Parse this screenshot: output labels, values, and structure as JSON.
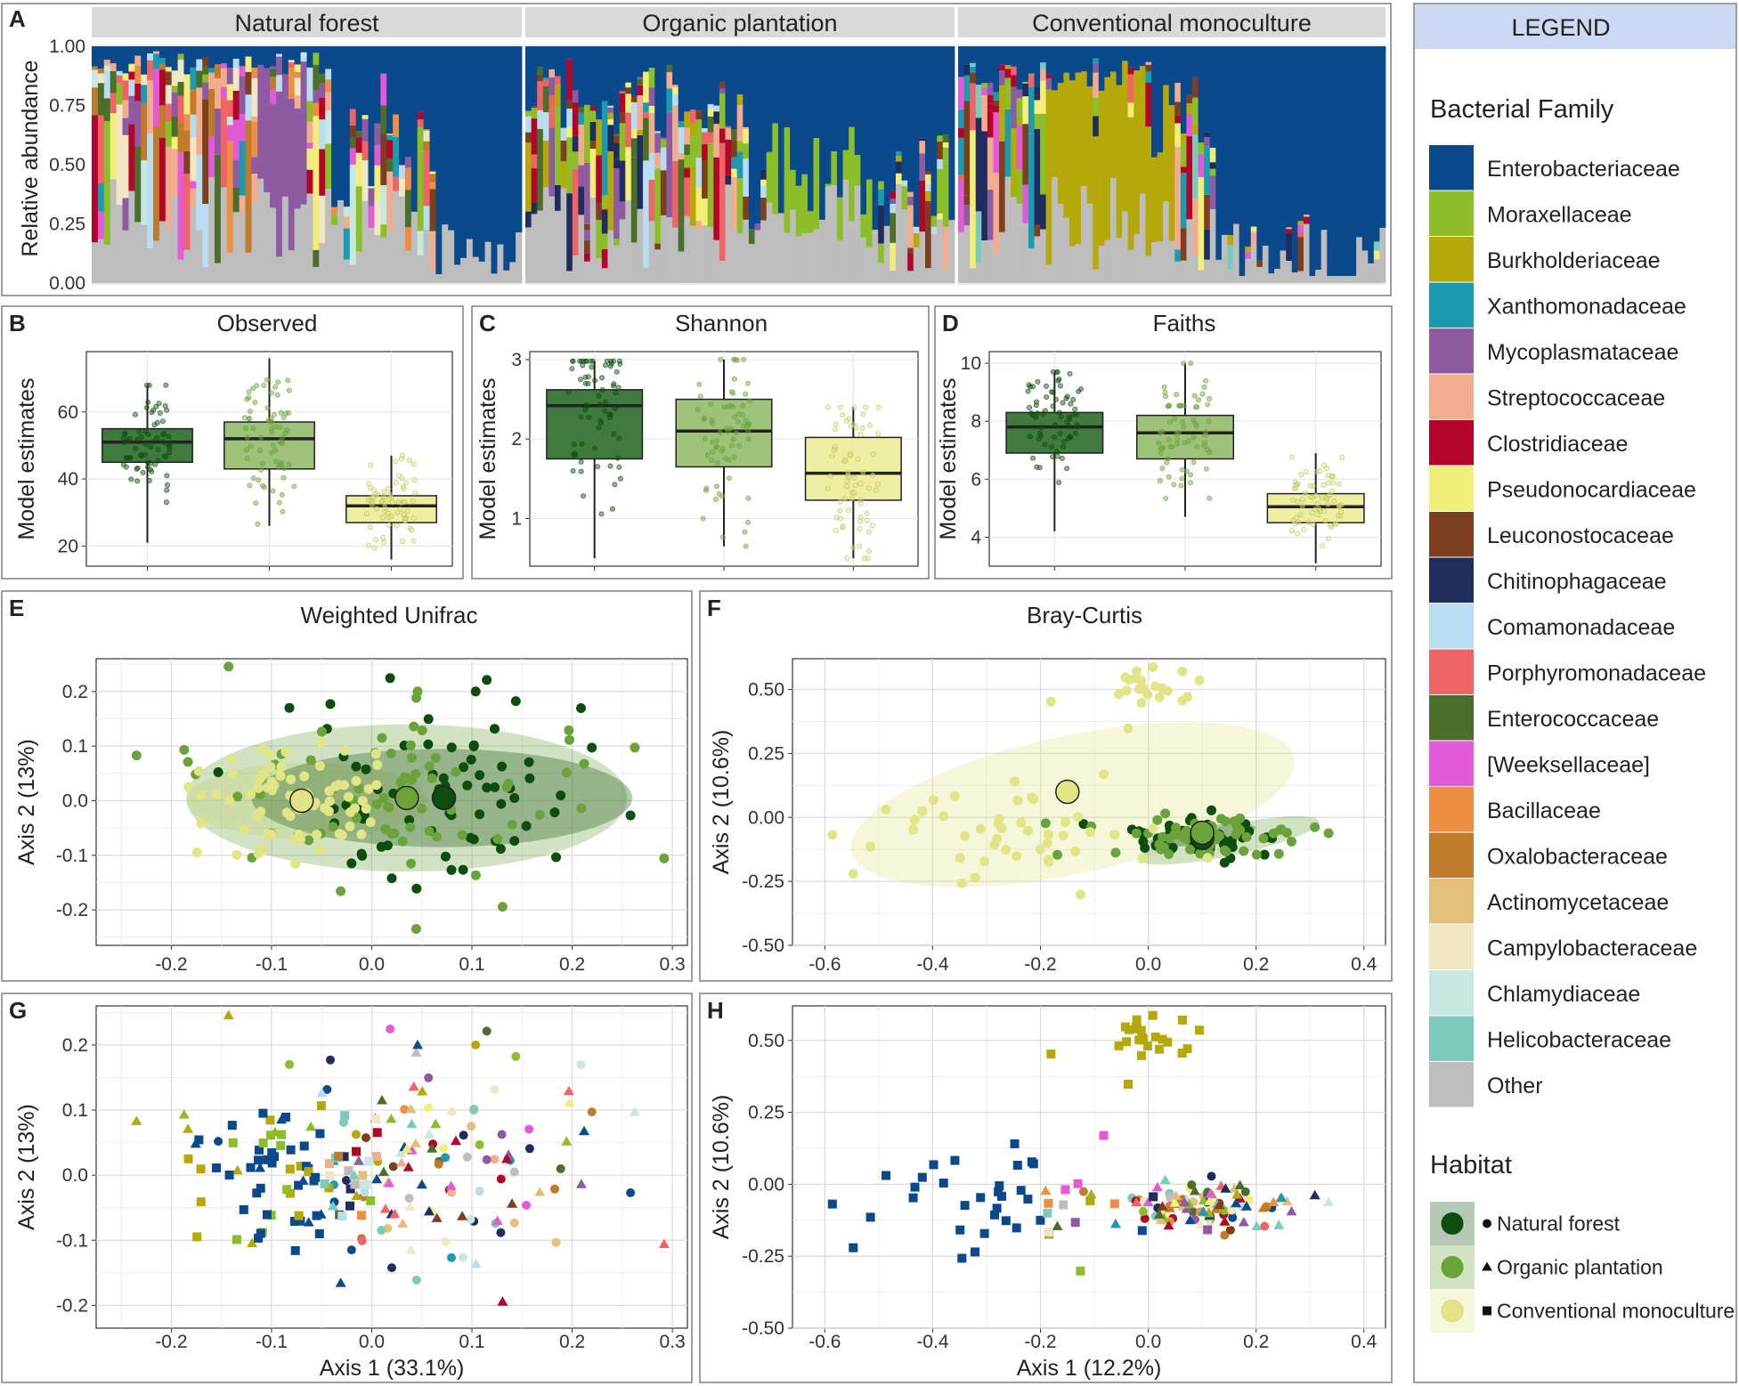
{
  "colors": {
    "natural": "#0d4d0d",
    "organic": "#6aa33a",
    "conventional": "#e2e585",
    "nat_box": "#3f7a3f",
    "org_box": "#9ec27a",
    "conv_box": "#eeeea0",
    "legend_header": "#cdd9f3",
    "panel_bg": "#ffffff",
    "strip_bg": "#d9d9d9"
  },
  "families": [
    {
      "name": "Enterobacteriaceae",
      "color": "#0a4a8c"
    },
    {
      "name": "Moraxellaceae",
      "color": "#8cbe2a"
    },
    {
      "name": "Burkholderiaceae",
      "color": "#b5a90a"
    },
    {
      "name": "Xanthomonadaceae",
      "color": "#1a9bb0"
    },
    {
      "name": "Mycoplasmataceae",
      "color": "#8e5ba2"
    },
    {
      "name": "Streptococcaceae",
      "color": "#f2ad8f"
    },
    {
      "name": "Clostridiaceae",
      "color": "#b3052a"
    },
    {
      "name": "Pseudonocardiaceae",
      "color": "#f2ee7a"
    },
    {
      "name": "Leuconostocaceae",
      "color": "#7e3f1e"
    },
    {
      "name": "Chitinophagaceae",
      "color": "#1f2d5e"
    },
    {
      "name": "Comamonadaceae",
      "color": "#b8dcf0"
    },
    {
      "name": "Porphyromonadaceae",
      "color": "#ef6467"
    },
    {
      "name": "Enterococcaceae",
      "color": "#4b6e2b"
    },
    {
      "name": "[Weeksellaceae]",
      "color": "#e35ad9"
    },
    {
      "name": "Bacillaceae",
      "color": "#ec8f42"
    },
    {
      "name": "Oxalobacteraceae",
      "color": "#bf7a2a"
    },
    {
      "name": "Actinomycetaceae",
      "color": "#e1c07c"
    },
    {
      "name": "Campylobacteraceae",
      "color": "#f1e7c5"
    },
    {
      "name": "Chlamydiaceae",
      "color": "#c7e8e1"
    },
    {
      "name": "Helicobacteraceae",
      "color": "#7bcbbc"
    },
    {
      "name": "Other",
      "color": "#bdbdbd"
    }
  ],
  "legend": {
    "title": "LEGEND",
    "family_title": "Bacterial Family",
    "habitat_title": "Habitat",
    "habitats": [
      {
        "label": "Natural forest",
        "shape": "circle"
      },
      {
        "label": "Organic plantation",
        "shape": "triangle"
      },
      {
        "label": "Conventional monoculture",
        "shape": "square"
      }
    ]
  },
  "chart_data": [
    {
      "panel": "A",
      "type": "bar",
      "stacked": true,
      "facets": [
        "Natural forest",
        "Organic plantation",
        "Conventional monoculture"
      ],
      "ylabel": "Relative abundance",
      "yticks": [
        "0.00",
        "0.25",
        "0.50",
        "0.75",
        "1.00"
      ],
      "ylim": [
        0,
        1
      ],
      "samples_per_facet": [
        70,
        73,
        73
      ],
      "dominant_family_by_region": {
        "Natural forest": "Other (grey) base with Enterobacteriaceae dominating the right third",
        "Organic plantation": "Moraxellaceae dominant block, Enterobacteriaceae top",
        "Conventional monoculture": "Burkholderiaceae central block, Enterobacteriaceae dominating the right half"
      }
    },
    {
      "panel": "B",
      "type": "box",
      "title": "Observed",
      "ylabel": "Model estimates",
      "ylim": [
        14,
        78
      ],
      "yticks": [
        20,
        40,
        60
      ],
      "groups": [
        {
          "habitat": "Natural forest",
          "min": 21,
          "q1": 45,
          "median": 51,
          "q3": 55,
          "max": 68
        },
        {
          "habitat": "Organic plantation",
          "min": 26,
          "q1": 43,
          "median": 52,
          "q3": 57,
          "max": 76
        },
        {
          "habitat": "Conventional monoculture",
          "min": 16,
          "q1": 27,
          "median": 32,
          "q3": 35,
          "max": 47
        }
      ]
    },
    {
      "panel": "C",
      "type": "box",
      "title": "Shannon",
      "ylabel": "Model estimates",
      "ylim": [
        0.4,
        3.1
      ],
      "yticks": [
        1,
        2,
        3
      ],
      "groups": [
        {
          "habitat": "Natural forest",
          "min": 0.5,
          "q1": 1.75,
          "median": 2.42,
          "q3": 2.62,
          "max": 2.98
        },
        {
          "habitat": "Organic plantation",
          "min": 0.65,
          "q1": 1.65,
          "median": 2.1,
          "q3": 2.5,
          "max": 3.0
        },
        {
          "habitat": "Conventional monoculture",
          "min": 0.5,
          "q1": 1.23,
          "median": 1.57,
          "q3": 2.02,
          "max": 2.4
        }
      ]
    },
    {
      "panel": "D",
      "type": "box",
      "title": "Faiths",
      "ylabel": "Model estimates",
      "ylim": [
        3,
        10.4
      ],
      "yticks": [
        4,
        6,
        8,
        10
      ],
      "groups": [
        {
          "habitat": "Natural forest",
          "min": 4.2,
          "q1": 6.9,
          "median": 7.8,
          "q3": 8.3,
          "max": 9.7
        },
        {
          "habitat": "Organic plantation",
          "min": 4.7,
          "q1": 6.7,
          "median": 7.6,
          "q3": 8.2,
          "max": 10.0
        },
        {
          "habitat": "Conventional monoculture",
          "min": 3.1,
          "q1": 4.5,
          "median": 5.05,
          "q3": 5.5,
          "max": 6.9
        }
      ]
    },
    {
      "panel": "E",
      "type": "scatter",
      "title": "Weighted Unifrac",
      "ylabel": "Axis 2 (13%)",
      "xlim": [
        -0.275,
        0.315
      ],
      "ylim": [
        -0.265,
        0.26
      ],
      "xticks": [
        "-0.2",
        "-0.1",
        "0.0",
        "0.1",
        "0.2",
        "0.3"
      ],
      "yticks": [
        "-0.2",
        "-0.1",
        "0.0",
        "0.1",
        "0.2"
      ],
      "centroids": [
        {
          "habitat": "Natural forest",
          "x": 0.072,
          "y": 0.005
        },
        {
          "habitat": "Organic plantation",
          "x": 0.035,
          "y": 0.005
        },
        {
          "habitat": "Conventional monoculture",
          "x": -0.07,
          "y": 0.0
        }
      ]
    },
    {
      "panel": "F",
      "type": "scatter",
      "title": "Bray-Curtis",
      "ylabel": "Axis 2 (10.6%)",
      "xlim": [
        -0.66,
        0.44
      ],
      "ylim": [
        -0.5,
        0.62
      ],
      "xticks": [
        "-0.6",
        "-0.4",
        "-0.2",
        "0.0",
        "0.2",
        "0.4"
      ],
      "yticks": [
        "-0.50",
        "-0.25",
        "0.00",
        "0.25",
        "0.50"
      ],
      "centroids": [
        {
          "habitat": "Natural forest",
          "x": 0.1,
          "y": -0.08
        },
        {
          "habitat": "Organic plantation",
          "x": 0.1,
          "y": -0.06
        },
        {
          "habitat": "Conventional monoculture",
          "x": -0.15,
          "y": 0.1
        }
      ]
    },
    {
      "panel": "G",
      "type": "scatter",
      "xlabel": "Axis 1 (33.1%)",
      "ylabel": "Axis 2 (13%)",
      "xlim": [
        -0.275,
        0.315
      ],
      "ylim": [
        -0.235,
        0.26
      ],
      "xticks": [
        "-0.2",
        "-0.1",
        "0.0",
        "0.1",
        "0.2",
        "0.3"
      ],
      "yticks": [
        "-0.2",
        "-0.1",
        "0.0",
        "0.1",
        "0.2"
      ]
    },
    {
      "panel": "H",
      "type": "scatter",
      "xlabel": "Axis 1 (12.2%)",
      "ylabel": "Axis 2 (10.6%)",
      "xlim": [
        -0.66,
        0.44
      ],
      "ylim": [
        -0.5,
        0.62
      ],
      "xticks": [
        "-0.6",
        "-0.4",
        "-0.2",
        "0.0",
        "0.2",
        "0.4"
      ],
      "yticks": [
        "-0.50",
        "-0.25",
        "0.00",
        "0.25",
        "0.50"
      ]
    }
  ],
  "panel_labels": [
    "A",
    "B",
    "C",
    "D",
    "E",
    "F",
    "G",
    "H"
  ]
}
